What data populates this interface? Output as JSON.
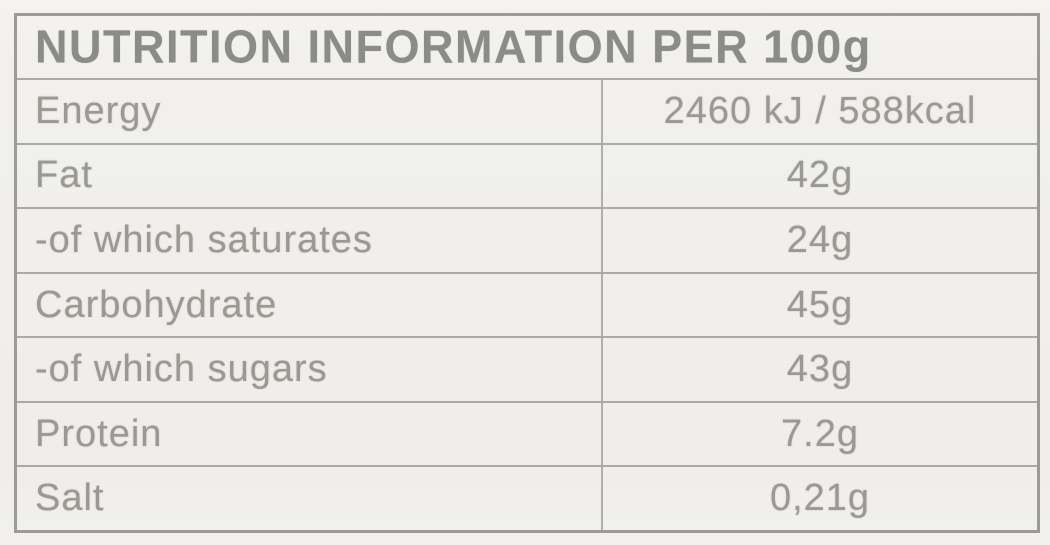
{
  "table": {
    "title": "NUTRITION INFORMATION PER 100g",
    "unit_basis": "100g",
    "rows": [
      {
        "label": "Energy",
        "value": "2460 kJ / 588kcal"
      },
      {
        "label": "Fat",
        "value": "42g"
      },
      {
        "label": "-of which saturates",
        "value": "24g"
      },
      {
        "label": "Carbohydrate",
        "value": "45g"
      },
      {
        "label": "-of which sugars",
        "value": "43g"
      },
      {
        "label": "Protein",
        "value": "7.2g"
      },
      {
        "label": "Salt",
        "value": "0,21g"
      }
    ],
    "colors": {
      "background": "#f0efeb",
      "header_text": "#8b8b89",
      "body_text": "#9a9994",
      "outer_border": "#9c9b97",
      "inner_border": "#aaa9a5"
    }
  }
}
